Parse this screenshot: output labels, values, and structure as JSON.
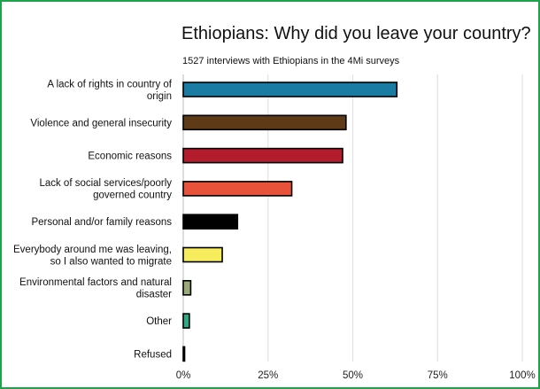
{
  "chart_data": {
    "type": "bar",
    "orientation": "horizontal",
    "title": "Ethiopians: Why did you leave your country?",
    "subtitle": "1527 interviews with Ethiopians in the 4Mi surveys",
    "xlabel": "",
    "ylabel": "",
    "xlim": [
      0,
      100
    ],
    "x_ticks": [
      "0%",
      "25%",
      "50%",
      "75%",
      "100%"
    ],
    "grid": true,
    "categories": [
      [
        "A lack of rights in country of",
        "origin"
      ],
      [
        "Violence and general insecurity"
      ],
      [
        "Economic reasons"
      ],
      [
        "Lack of social services/poorly",
        "governed country"
      ],
      [
        "Personal and/or family reasons"
      ],
      [
        "Everybody around me was leaving,",
        "so I also wanted to migrate"
      ],
      [
        "Environmental factors and natural",
        "disaster"
      ],
      [
        "Other"
      ],
      [
        "Refused"
      ]
    ],
    "values": [
      63,
      48,
      47,
      32,
      16,
      11.5,
      2.2,
      1.8,
      0.4
    ],
    "colors": [
      "#1a7ba3",
      "#5e3a17",
      "#b31c2d",
      "#e8523a",
      "#000000",
      "#f7ec5c",
      "#9aab78",
      "#2cab84",
      "#222222"
    ]
  }
}
